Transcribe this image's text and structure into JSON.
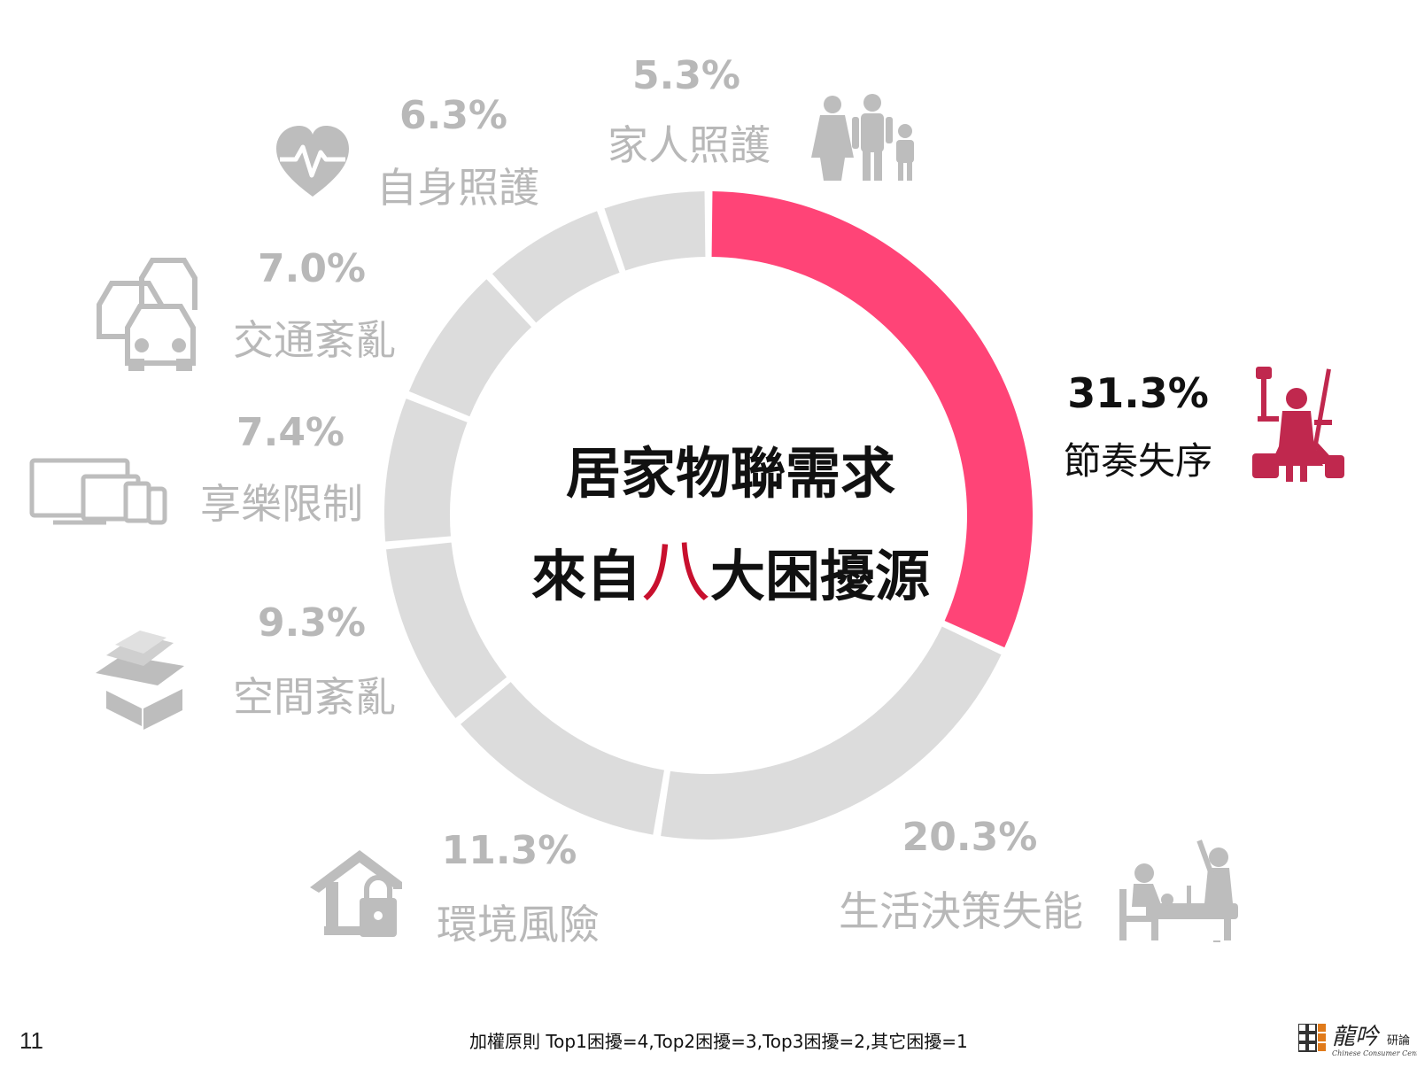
{
  "center": {
    "line1": "居家物聯需求",
    "line2_pre": "來自",
    "line2_highlight": "八",
    "line2_post": "大困擾源"
  },
  "colors": {
    "highlight": "#ff4477",
    "muted": "#dcdcdc",
    "muted_text": "#b8b8b8",
    "highlight_text": "#c8102e",
    "dark_text": "#111111",
    "highlight_icon": "#c0284e"
  },
  "chart_data": {
    "type": "pie",
    "donut": true,
    "start_angle_deg": 0,
    "direction": "clockwise",
    "highlight_index": 0,
    "slices": [
      {
        "label": "節奏失序",
        "value": 31.3,
        "value_label": "31.3%",
        "icon": "multitasking-mother-icon"
      },
      {
        "label": "生活決策失能",
        "value": 20.3,
        "value_label": "20.3%",
        "icon": "dining-chef-icon"
      },
      {
        "label": "環境風險",
        "value": 11.3,
        "value_label": "11.3%",
        "icon": "house-lock-icon"
      },
      {
        "label": "空間紊亂",
        "value": 9.3,
        "value_label": "9.3%",
        "icon": "stacked-boxes-icon"
      },
      {
        "label": "享樂限制",
        "value": 7.4,
        "value_label": "7.4%",
        "icon": "devices-icon"
      },
      {
        "label": "交通紊亂",
        "value": 7.0,
        "value_label": "7.0%",
        "icon": "traffic-cars-icon"
      },
      {
        "label": "自身照護",
        "value": 6.3,
        "value_label": "6.3%",
        "icon": "heart-pulse-icon"
      },
      {
        "label": "家人照護",
        "value": 5.3,
        "value_label": "5.3%",
        "icon": "family-icon"
      }
    ]
  },
  "footer": {
    "page_number": "11",
    "note": "加權原則 Top1困擾=4,Top2困擾=3,Top3困擾=2,其它困擾=1",
    "logo_name": "龍吟",
    "logo_sub": "研論",
    "logo_en": "Chinese Consumer Centre"
  }
}
